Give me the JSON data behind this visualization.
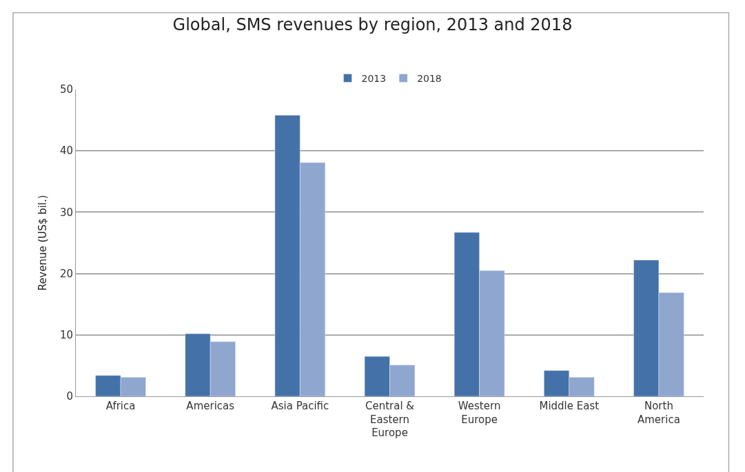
{
  "chart_data": {
    "type": "bar",
    "title": "Global, SMS revenues by region, 2013 and 2018",
    "ylabel": "Revenue (US$ bil.)",
    "categories": [
      "Africa",
      "Americas",
      "Asia Pacific",
      "Central & Eastern Europe",
      "Western Europe",
      "Middle East",
      "North America"
    ],
    "series": [
      {
        "name": "2013",
        "color": "#4472a8",
        "values": [
          3.4,
          10.2,
          45.8,
          6.5,
          26.7,
          4.2,
          22.2
        ]
      },
      {
        "name": "2018",
        "color": "#8fa6cf",
        "values": [
          3.1,
          8.9,
          38.1,
          5.1,
          20.5,
          3.1,
          16.9
        ]
      }
    ],
    "ylim": [
      0,
      50
    ],
    "yticks": [
      0,
      10,
      20,
      30,
      40,
      50
    ],
    "grid": "y",
    "legend": "top"
  }
}
